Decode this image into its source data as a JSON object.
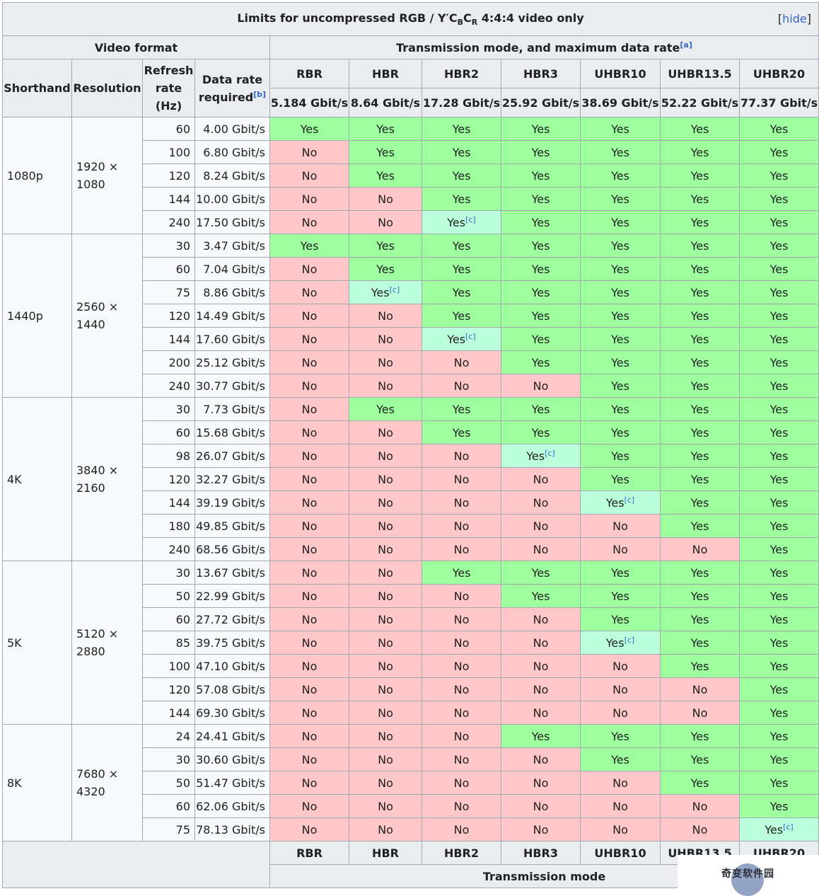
{
  "caption": {
    "prefix": "Limits for uncompressed RGB / Y′C",
    "sub_b": "B",
    "mid": "C",
    "sub_r": "R",
    "suffix": " 4:4:4 video only",
    "hide_open": "[",
    "hide_label": "hide",
    "hide_close": "]"
  },
  "header": {
    "video_format": "Video format",
    "transmission": "Transmission mode, and maximum data rate",
    "transmission_note": "[a]",
    "shorthand": "Shorthand",
    "resolution": "Resolution",
    "refresh_rate": "Refresh rate (Hz)",
    "data_rate": "Data rate required",
    "data_rate_note": "[b]",
    "modes": [
      {
        "name": "RBR",
        "rate": "5.184 Gbit/s"
      },
      {
        "name": "HBR",
        "rate": "8.64 Gbit/s"
      },
      {
        "name": "HBR2",
        "rate": "17.28 Gbit/s"
      },
      {
        "name": "HBR3",
        "rate": "25.92 Gbit/s"
      },
      {
        "name": "UHBR10",
        "rate": "38.69 Gbit/s"
      },
      {
        "name": "UHBR13.5",
        "rate": "52.22 Gbit/s"
      },
      {
        "name": "UHBR20",
        "rate": "77.37 Gbit/s"
      }
    ]
  },
  "labels": {
    "yes": "Yes",
    "no": "No",
    "note_c": "[c]"
  },
  "groups": [
    {
      "shorthand": "1080p",
      "resolution": "1920 × 1080",
      "rows": [
        {
          "hz": "60",
          "rate": "4.00 Gbit/s",
          "cells": [
            "Y",
            "Y",
            "Y",
            "Y",
            "Y",
            "Y",
            "Y"
          ]
        },
        {
          "hz": "100",
          "rate": "6.80 Gbit/s",
          "cells": [
            "N",
            "Y",
            "Y",
            "Y",
            "Y",
            "Y",
            "Y"
          ]
        },
        {
          "hz": "120",
          "rate": "8.24 Gbit/s",
          "cells": [
            "N",
            "Y",
            "Y",
            "Y",
            "Y",
            "Y",
            "Y"
          ]
        },
        {
          "hz": "144",
          "rate": "10.00 Gbit/s",
          "cells": [
            "N",
            "N",
            "Y",
            "Y",
            "Y",
            "Y",
            "Y"
          ]
        },
        {
          "hz": "240",
          "rate": "17.50 Gbit/s",
          "cells": [
            "N",
            "N",
            "C",
            "Y",
            "Y",
            "Y",
            "Y"
          ]
        }
      ]
    },
    {
      "shorthand": "1440p",
      "resolution": "2560 × 1440",
      "rows": [
        {
          "hz": "30",
          "rate": "3.47 Gbit/s",
          "cells": [
            "Y",
            "Y",
            "Y",
            "Y",
            "Y",
            "Y",
            "Y"
          ]
        },
        {
          "hz": "60",
          "rate": "7.04 Gbit/s",
          "cells": [
            "N",
            "Y",
            "Y",
            "Y",
            "Y",
            "Y",
            "Y"
          ]
        },
        {
          "hz": "75",
          "rate": "8.86 Gbit/s",
          "cells": [
            "N",
            "C",
            "Y",
            "Y",
            "Y",
            "Y",
            "Y"
          ]
        },
        {
          "hz": "120",
          "rate": "14.49 Gbit/s",
          "cells": [
            "N",
            "N",
            "Y",
            "Y",
            "Y",
            "Y",
            "Y"
          ]
        },
        {
          "hz": "144",
          "rate": "17.60 Gbit/s",
          "cells": [
            "N",
            "N",
            "C",
            "Y",
            "Y",
            "Y",
            "Y"
          ]
        },
        {
          "hz": "200",
          "rate": "25.12 Gbit/s",
          "cells": [
            "N",
            "N",
            "N",
            "Y",
            "Y",
            "Y",
            "Y"
          ]
        },
        {
          "hz": "240",
          "rate": "30.77 Gbit/s",
          "cells": [
            "N",
            "N",
            "N",
            "N",
            "Y",
            "Y",
            "Y"
          ]
        }
      ]
    },
    {
      "shorthand": "4K",
      "resolution": "3840 × 2160",
      "rows": [
        {
          "hz": "30",
          "rate": "7.73 Gbit/s",
          "cells": [
            "N",
            "Y",
            "Y",
            "Y",
            "Y",
            "Y",
            "Y"
          ]
        },
        {
          "hz": "60",
          "rate": "15.68 Gbit/s",
          "cells": [
            "N",
            "N",
            "Y",
            "Y",
            "Y",
            "Y",
            "Y"
          ]
        },
        {
          "hz": "98",
          "rate": "26.07 Gbit/s",
          "cells": [
            "N",
            "N",
            "N",
            "C",
            "Y",
            "Y",
            "Y"
          ]
        },
        {
          "hz": "120",
          "rate": "32.27 Gbit/s",
          "cells": [
            "N",
            "N",
            "N",
            "N",
            "Y",
            "Y",
            "Y"
          ]
        },
        {
          "hz": "144",
          "rate": "39.19 Gbit/s",
          "cells": [
            "N",
            "N",
            "N",
            "N",
            "C",
            "Y",
            "Y"
          ]
        },
        {
          "hz": "180",
          "rate": "49.85 Gbit/s",
          "cells": [
            "N",
            "N",
            "N",
            "N",
            "N",
            "Y",
            "Y"
          ]
        },
        {
          "hz": "240",
          "rate": "68.56 Gbit/s",
          "cells": [
            "N",
            "N",
            "N",
            "N",
            "N",
            "N",
            "Y"
          ]
        }
      ]
    },
    {
      "shorthand": "5K",
      "resolution": "5120 × 2880",
      "rows": [
        {
          "hz": "30",
          "rate": "13.67 Gbit/s",
          "cells": [
            "N",
            "N",
            "Y",
            "Y",
            "Y",
            "Y",
            "Y"
          ]
        },
        {
          "hz": "50",
          "rate": "22.99 Gbit/s",
          "cells": [
            "N",
            "N",
            "N",
            "Y",
            "Y",
            "Y",
            "Y"
          ]
        },
        {
          "hz": "60",
          "rate": "27.72 Gbit/s",
          "cells": [
            "N",
            "N",
            "N",
            "N",
            "Y",
            "Y",
            "Y"
          ]
        },
        {
          "hz": "85",
          "rate": "39.75 Gbit/s",
          "cells": [
            "N",
            "N",
            "N",
            "N",
            "C",
            "Y",
            "Y"
          ]
        },
        {
          "hz": "100",
          "rate": "47.10 Gbit/s",
          "cells": [
            "N",
            "N",
            "N",
            "N",
            "N",
            "Y",
            "Y"
          ]
        },
        {
          "hz": "120",
          "rate": "57.08 Gbit/s",
          "cells": [
            "N",
            "N",
            "N",
            "N",
            "N",
            "N",
            "Y"
          ]
        },
        {
          "hz": "144",
          "rate": "69.30 Gbit/s",
          "cells": [
            "N",
            "N",
            "N",
            "N",
            "N",
            "N",
            "Y"
          ]
        }
      ]
    },
    {
      "shorthand": "8K",
      "resolution": "7680 × 4320",
      "rows": [
        {
          "hz": "24",
          "rate": "24.41 Gbit/s",
          "cells": [
            "N",
            "N",
            "N",
            "Y",
            "Y",
            "Y",
            "Y"
          ]
        },
        {
          "hz": "30",
          "rate": "30.60 Gbit/s",
          "cells": [
            "N",
            "N",
            "N",
            "N",
            "Y",
            "Y",
            "Y"
          ]
        },
        {
          "hz": "50",
          "rate": "51.47 Gbit/s",
          "cells": [
            "N",
            "N",
            "N",
            "N",
            "N",
            "Y",
            "Y"
          ]
        },
        {
          "hz": "60",
          "rate": "62.06 Gbit/s",
          "cells": [
            "N",
            "N",
            "N",
            "N",
            "N",
            "N",
            "Y"
          ]
        },
        {
          "hz": "75",
          "rate": "78.13 Gbit/s",
          "cells": [
            "N",
            "N",
            "N",
            "N",
            "N",
            "N",
            "C"
          ]
        }
      ]
    }
  ],
  "footer": {
    "transmission_mode": "Transmission mode"
  },
  "watermark": {
    "text": "奇变软件园"
  },
  "colors": {
    "yes": "#9eff9e",
    "no": "#ffc7c7",
    "partial": "#bbffdd",
    "header": "#eaecf0"
  }
}
